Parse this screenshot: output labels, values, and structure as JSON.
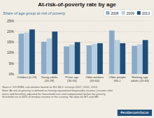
{
  "chart_data": {
    "type": "bar",
    "title": "At-risk-of-poverty rate by age",
    "subtitle": "Share of age group at risk of poverty",
    "categories": [
      "Children (0-19)",
      "Young adults\n(20-29)",
      "Prime age\n(30-54)",
      "Older workers\n(55-64)",
      "Older people\n(65+)",
      "Working age\nadults (20-64)"
    ],
    "series": [
      {
        "name": "2006",
        "color": "#8baac8",
        "values": [
          19.0,
          15.2,
          13.0,
          13.5,
          20.5,
          13.3
        ]
      },
      {
        "name": "2009",
        "color": "#b8cfe0",
        "values": [
          19.5,
          16.8,
          13.8,
          14.2,
          16.0,
          14.0
        ]
      },
      {
        "name": "2013",
        "color": "#1f4e79",
        "values": [
          21.0,
          20.0,
          15.0,
          14.5,
          14.5,
          16.0
        ]
      }
    ],
    "ylim": [
      0,
      25
    ],
    "yticks": [
      {
        "value": 0,
        "label": "0%"
      },
      {
        "value": 5,
        "label": "5%"
      },
      {
        "value": 10,
        "label": "10%"
      },
      {
        "value": 15,
        "label": "15%"
      },
      {
        "value": 20,
        "label": "20%"
      },
      {
        "value": 25,
        "label": "25%"
      }
    ],
    "grid": true,
    "legend": "upper right",
    "annotations": [
      "Source: DG EMN, calculations based on EU-SILC surveys 2007, 2010, 2014.\nNote: At-risk-of-poverty is defined as having equivalised disposable income ( income after\ntaxes and benefits) adjusted for household size and composition) below the poverty\nthreshold set at 60% of median income in the country. No data for MT and MK.",
      "#evidenceinfocus"
    ]
  }
}
